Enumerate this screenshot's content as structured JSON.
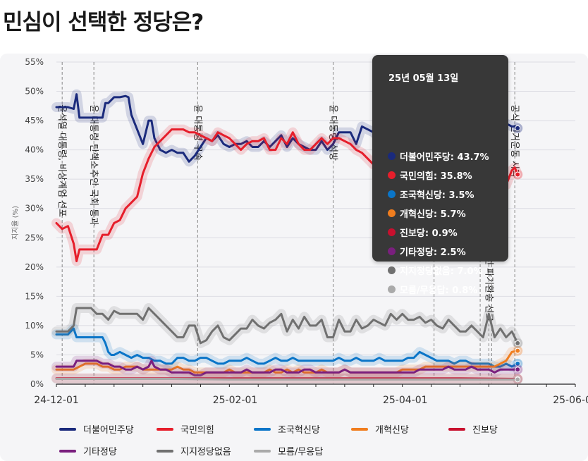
{
  "page": {
    "title": "민심이 선택한 정당은?"
  },
  "chart_data": {
    "type": "line",
    "ylabel": "지지율 (%)",
    "ylim": [
      0,
      55
    ],
    "yticks": [
      0,
      5,
      10,
      15,
      20,
      25,
      30,
      35,
      40,
      45,
      50,
      55
    ],
    "ytick_labels": [
      "0%",
      "5%",
      "10%",
      "15%",
      "20%",
      "25%",
      "30%",
      "35%",
      "40%",
      "45%",
      "50%",
      "55%"
    ],
    "xlim": [
      0,
      180
    ],
    "xticks": [
      0,
      62,
      121,
      180
    ],
    "xtick_labels": [
      "24-12-01",
      "25-02-01",
      "25-04-01",
      "25-06-01"
    ],
    "grid": true,
    "events": [
      {
        "day": 2,
        "label": "윤석열 대통령, 비상계엄 선포"
      },
      {
        "day": 13,
        "label": "윤 대통령 탄핵소추안 국회 통과"
      },
      {
        "day": 49,
        "label": "윤 대통령 구속"
      },
      {
        "day": 96,
        "label": "윤 대통령 석방"
      },
      {
        "day": 131,
        "label": ""
      },
      {
        "day": 147,
        "label": ""
      },
      {
        "day": 150,
        "label": "대법원, 이재명 후보 공직선거법 위반 사건 파기환송 선고"
      },
      {
        "day": 151,
        "label": ""
      },
      {
        "day": 159,
        "label": "공식 선거운동 시작"
      }
    ],
    "series": [
      {
        "name": "더불어민주당",
        "color": "#1a2a7c",
        "x": [
          0,
          4,
          6,
          7,
          8,
          12,
          13,
          16,
          17,
          18,
          20,
          22,
          24,
          25,
          26,
          28,
          30,
          32,
          33,
          34,
          36,
          38,
          40,
          42,
          44,
          46,
          48,
          50,
          52,
          54,
          56,
          58,
          60,
          62,
          64,
          66,
          68,
          70,
          72,
          74,
          76,
          78,
          80,
          82,
          84,
          86,
          88,
          90,
          92,
          94,
          96,
          98,
          100,
          102,
          104,
          106,
          108,
          110,
          112,
          114,
          116,
          118,
          120,
          122,
          124,
          126,
          128,
          130,
          132,
          134,
          136,
          138,
          140,
          142,
          144,
          146,
          148,
          150,
          152,
          154,
          156,
          158,
          159,
          160
        ],
        "values": [
          47.3,
          47.3,
          47,
          49.5,
          45.5,
          45.5,
          45.5,
          45.5,
          48,
          48,
          49,
          49,
          49.2,
          49,
          46,
          43.5,
          41,
          45,
          45,
          42,
          40,
          39.5,
          40,
          39.5,
          39.5,
          38,
          39,
          40.5,
          42,
          41.5,
          42.5,
          41,
          40.5,
          41,
          41,
          41.5,
          40.5,
          40.5,
          41.5,
          40.5,
          41.5,
          42.5,
          40.5,
          42,
          41,
          40.5,
          40,
          40,
          41.5,
          40,
          41,
          43,
          43,
          43,
          41,
          44,
          43.5,
          43,
          42,
          42.5,
          43.5,
          43,
          42.5,
          43,
          43.5,
          43.5,
          44,
          43,
          44,
          43.5,
          44.5,
          44,
          43.5,
          44.5,
          44,
          44.5,
          45,
          44.5,
          44,
          44.5,
          44.5,
          44,
          44,
          43.7
        ]
      },
      {
        "name": "국민의힘",
        "color": "#e61e2b",
        "x": [
          0,
          2,
          4,
          6,
          7,
          8,
          10,
          12,
          13,
          14,
          16,
          18,
          20,
          22,
          24,
          26,
          28,
          30,
          32,
          34,
          36,
          38,
          40,
          42,
          44,
          46,
          48,
          50,
          52,
          54,
          56,
          58,
          60,
          62,
          64,
          66,
          68,
          70,
          72,
          74,
          76,
          78,
          80,
          82,
          84,
          86,
          88,
          90,
          92,
          94,
          96,
          98,
          100,
          102,
          104,
          106,
          108,
          110,
          112,
          114,
          116,
          118,
          120,
          122,
          124,
          126,
          128,
          130,
          132,
          134,
          136,
          138,
          140,
          142,
          144,
          146,
          148,
          150,
          152,
          154,
          156,
          158,
          159,
          160
        ],
        "values": [
          27.5,
          26.5,
          27,
          24,
          21,
          23,
          23,
          23,
          23,
          23,
          25.5,
          25.5,
          27.5,
          28,
          30,
          31,
          32,
          36,
          38.5,
          40.5,
          41.5,
          42.5,
          43.5,
          43.5,
          43.5,
          43,
          43,
          42.5,
          42,
          41.5,
          43,
          42.5,
          42,
          41,
          40,
          41,
          41.5,
          41.5,
          42,
          40,
          40,
          42,
          41,
          43,
          41,
          40,
          40,
          41,
          42,
          41,
          42,
          42,
          41.5,
          41,
          40,
          39.5,
          38.5,
          37.5,
          38,
          38,
          37.5,
          37,
          36.5,
          36,
          36,
          36.5,
          36.5,
          36.5,
          36,
          35,
          35.5,
          35.5,
          36,
          36,
          36,
          35.5,
          35,
          35.5,
          36,
          35.5,
          34,
          36.5,
          37,
          35.8
        ]
      },
      {
        "name": "조국혁신당",
        "color": "#0a75c8",
        "x": [
          0,
          2,
          4,
          6,
          7,
          8,
          12,
          14,
          16,
          17,
          18,
          19,
          20,
          22,
          24,
          26,
          28,
          30,
          32,
          34,
          36,
          38,
          40,
          42,
          44,
          46,
          48,
          50,
          52,
          54,
          56,
          58,
          60,
          62,
          64,
          66,
          68,
          70,
          72,
          74,
          76,
          78,
          80,
          82,
          84,
          86,
          88,
          90,
          92,
          94,
          96,
          98,
          100,
          102,
          104,
          106,
          108,
          110,
          112,
          114,
          116,
          118,
          120,
          122,
          124,
          126,
          128,
          130,
          132,
          134,
          136,
          138,
          140,
          142,
          144,
          146,
          148,
          150,
          152,
          154,
          156,
          158,
          160
        ],
        "values": [
          8.5,
          8.5,
          8.5,
          9.5,
          8,
          8,
          8,
          8,
          8,
          7,
          5.5,
          5,
          5,
          5.5,
          5,
          4.5,
          5,
          4.5,
          4.5,
          4,
          4,
          3.5,
          3.5,
          4.5,
          4.5,
          4,
          4,
          4.5,
          4.5,
          4,
          3.5,
          3.5,
          4,
          4,
          4,
          4.5,
          4,
          3.5,
          3.5,
          4,
          4.5,
          4,
          4,
          4.5,
          4,
          4,
          4,
          4,
          4,
          4,
          4,
          4.5,
          4,
          4,
          4.5,
          4,
          4,
          4,
          4.5,
          4,
          4,
          4,
          4,
          4.5,
          4.5,
          5.5,
          5,
          4.5,
          4,
          4,
          4,
          3.5,
          4,
          4,
          3.5,
          3.5,
          3.5,
          3.5,
          3,
          3,
          3.5,
          3,
          3.5
        ]
      },
      {
        "name": "개혁신당",
        "color": "#f07d1e",
        "x": [
          0,
          4,
          6,
          8,
          10,
          12,
          14,
          16,
          18,
          20,
          22,
          24,
          26,
          28,
          30,
          32,
          34,
          36,
          38,
          40,
          42,
          44,
          46,
          48,
          50,
          52,
          54,
          56,
          58,
          60,
          62,
          64,
          66,
          68,
          70,
          72,
          74,
          76,
          78,
          80,
          82,
          84,
          86,
          88,
          90,
          92,
          94,
          96,
          98,
          100,
          102,
          104,
          106,
          108,
          110,
          112,
          114,
          116,
          118,
          120,
          122,
          124,
          126,
          128,
          130,
          132,
          134,
          136,
          138,
          140,
          142,
          144,
          146,
          148,
          150,
          152,
          154,
          156,
          158,
          160
        ],
        "values": [
          2.5,
          2.5,
          2.5,
          3,
          3.5,
          3.5,
          3.5,
          3,
          3,
          2.5,
          2.5,
          3,
          3,
          3,
          2.5,
          2.5,
          2.5,
          2.5,
          2.5,
          2.5,
          3,
          2.5,
          2.5,
          2,
          2,
          2,
          2,
          2,
          2,
          2.5,
          2,
          2,
          2,
          2,
          2,
          2,
          2.5,
          2,
          2,
          2.5,
          2,
          2.5,
          2,
          2,
          2,
          2.5,
          2,
          2,
          2,
          2.5,
          2,
          2,
          2,
          2,
          2,
          2,
          2,
          2,
          2,
          2.5,
          2.5,
          2.5,
          2.5,
          3,
          3,
          3,
          3,
          3,
          3,
          3,
          3,
          3,
          3,
          3,
          3,
          3,
          3.5,
          4,
          5.5,
          5.7
        ]
      },
      {
        "name": "진보당",
        "color": "#c8102e",
        "x": [
          0,
          20,
          40,
          60,
          80,
          100,
          120,
          140,
          160
        ],
        "values": [
          1,
          1,
          1,
          1,
          1,
          1,
          1,
          1,
          0.9
        ]
      },
      {
        "name": "기타정당",
        "color": "#7a1f7e",
        "x": [
          0,
          4,
          6,
          7,
          8,
          10,
          12,
          14,
          16,
          18,
          20,
          22,
          24,
          26,
          28,
          30,
          32,
          33,
          34,
          36,
          38,
          40,
          42,
          44,
          46,
          48,
          50,
          52,
          54,
          56,
          58,
          60,
          62,
          64,
          66,
          68,
          70,
          72,
          74,
          76,
          78,
          80,
          82,
          84,
          86,
          88,
          90,
          92,
          94,
          96,
          98,
          100,
          102,
          104,
          106,
          108,
          110,
          112,
          114,
          116,
          118,
          120,
          122,
          124,
          126,
          128,
          130,
          132,
          134,
          136,
          138,
          140,
          142,
          144,
          146,
          148,
          150,
          152,
          154,
          156,
          158,
          160
        ],
        "values": [
          3,
          3,
          3,
          4,
          4,
          4,
          4,
          4,
          3.5,
          3.5,
          3,
          3,
          2.5,
          2.5,
          3,
          2.5,
          3,
          4,
          3,
          2.5,
          2.5,
          2,
          2,
          2,
          2,
          1.5,
          1.5,
          2,
          2,
          2,
          2,
          2,
          2,
          2,
          2.5,
          2,
          2,
          2,
          2,
          2.5,
          2.5,
          2,
          2,
          2,
          2.5,
          2.5,
          2,
          2,
          2,
          2,
          2,
          2.5,
          2,
          2,
          2,
          2,
          2,
          2,
          2,
          2,
          2,
          2,
          2,
          2,
          2.5,
          2.5,
          2.5,
          2.5,
          2.5,
          3,
          2.5,
          2.5,
          2.5,
          3,
          2.5,
          2.5,
          2.5,
          2,
          2.5,
          2.5,
          2.5,
          2.5
        ]
      },
      {
        "name": "지지정당없음",
        "color": "#707070",
        "x": [
          0,
          4,
          6,
          7,
          8,
          12,
          14,
          16,
          18,
          20,
          22,
          24,
          26,
          28,
          30,
          32,
          34,
          36,
          38,
          40,
          42,
          44,
          46,
          48,
          50,
          52,
          54,
          56,
          58,
          60,
          62,
          64,
          66,
          68,
          70,
          72,
          74,
          76,
          78,
          80,
          82,
          84,
          86,
          88,
          90,
          92,
          94,
          96,
          98,
          100,
          102,
          104,
          106,
          108,
          110,
          112,
          114,
          116,
          118,
          120,
          122,
          124,
          126,
          128,
          130,
          132,
          134,
          136,
          138,
          140,
          142,
          144,
          146,
          148,
          150,
          152,
          154,
          156,
          158,
          160
        ],
        "values": [
          9,
          9,
          10,
          13,
          13,
          13,
          12,
          12,
          11,
          12.5,
          12,
          12,
          12,
          12,
          11,
          13,
          12,
          11,
          10,
          9,
          8,
          8,
          10,
          10,
          7,
          7.5,
          9,
          10,
          8,
          7.5,
          8.5,
          9.5,
          9.5,
          11,
          10,
          9.5,
          10.5,
          11,
          12,
          9,
          11,
          9.5,
          11.5,
          10,
          10,
          11,
          8,
          8,
          11,
          9,
          9,
          11,
          9.5,
          10,
          11,
          10.5,
          10,
          12,
          11,
          12,
          11,
          11,
          11.5,
          10.5,
          11,
          10,
          9.5,
          11,
          10,
          9,
          9,
          10,
          9,
          8,
          12,
          8,
          9.5,
          8,
          9,
          7
        ]
      },
      {
        "name": "모름/무응답",
        "color": "#aaaaaa",
        "x": [
          0,
          20,
          40,
          60,
          80,
          100,
          120,
          140,
          160
        ],
        "values": [
          0.9,
          0.9,
          0.9,
          0.8,
          0.8,
          0.8,
          0.8,
          0.8,
          0.8
        ]
      }
    ]
  },
  "tooltip": {
    "date": "25년 05월 13일",
    "items": [
      {
        "label": "더불어민주당: 43.7%",
        "color": "#1a2a7c"
      },
      {
        "label": "국민의힘: 35.8%",
        "color": "#e61e2b"
      },
      {
        "label": "조국혁신당: 3.5%",
        "color": "#0a75c8"
      },
      {
        "label": "개혁신당: 5.7%",
        "color": "#f07d1e"
      },
      {
        "label": "진보당: 0.9%",
        "color": "#c8102e"
      },
      {
        "label": "기타정당: 2.5%",
        "color": "#7a1f7e"
      },
      {
        "label": "지지정당없음: 7.0%",
        "color": "#707070"
      },
      {
        "label": "모름/무응답: 0.8%",
        "color": "#aaaaaa"
      }
    ]
  },
  "legend": {
    "items": [
      {
        "label": "더불어민주당",
        "color": "#1a2a7c"
      },
      {
        "label": "국민의힘",
        "color": "#e61e2b"
      },
      {
        "label": "조국혁신당",
        "color": "#0a75c8"
      },
      {
        "label": "개혁신당",
        "color": "#f07d1e"
      },
      {
        "label": "진보당",
        "color": "#c8102e"
      },
      {
        "label": "기타정당",
        "color": "#7a1f7e"
      },
      {
        "label": "지지정당없음",
        "color": "#707070"
      },
      {
        "label": "모름/무응답",
        "color": "#aaaaaa"
      }
    ]
  }
}
